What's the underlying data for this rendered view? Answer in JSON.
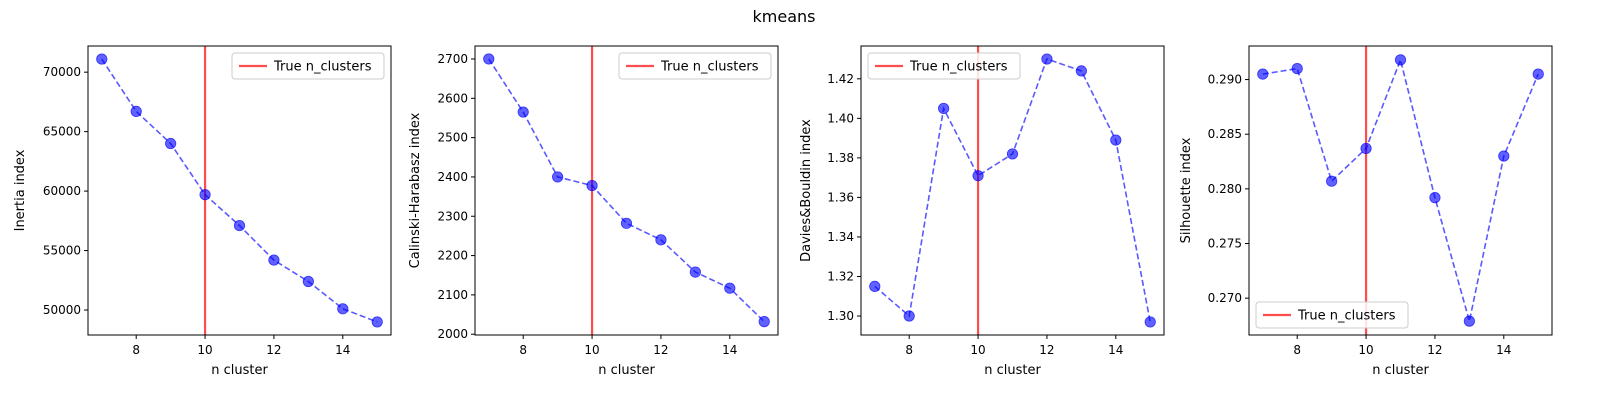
{
  "figure": {
    "title": "kmeans"
  },
  "colors": {
    "series": "#0000ff",
    "true_line": "#ff0000"
  },
  "chart_data": [
    {
      "type": "line",
      "xlabel": "n cluster",
      "ylabel": "Inertia index",
      "x": [
        7,
        8,
        9,
        10,
        11,
        12,
        13,
        14,
        15
      ],
      "values": [
        71100,
        66700,
        64000,
        59700,
        57100,
        54200,
        52400,
        50100,
        49000
      ],
      "xlim": [
        6.6,
        15.4
      ],
      "ylim": [
        47900,
        72200
      ],
      "xticks": [
        8,
        10,
        12,
        14
      ],
      "yticks": [
        50000,
        55000,
        60000,
        65000,
        70000
      ],
      "true_n_clusters": 10,
      "legend": {
        "label": "True n_clusters",
        "loc": "upper right"
      },
      "grid": false
    },
    {
      "type": "line",
      "xlabel": "n cluster",
      "ylabel": "Calinski-Harabasz index",
      "x": [
        7,
        8,
        9,
        10,
        11,
        12,
        13,
        14,
        15
      ],
      "values": [
        2700,
        2565,
        2400,
        2378,
        2282,
        2240,
        2158,
        2117,
        2032
      ],
      "xlim": [
        6.6,
        15.4
      ],
      "ylim": [
        1998,
        2733
      ],
      "xticks": [
        8,
        10,
        12,
        14
      ],
      "yticks": [
        2000,
        2100,
        2200,
        2300,
        2400,
        2500,
        2600,
        2700
      ],
      "true_n_clusters": 10,
      "legend": {
        "label": "True n_clusters",
        "loc": "upper right"
      },
      "grid": false
    },
    {
      "type": "line",
      "xlabel": "n cluster",
      "ylabel": "Davies&Bouldin index",
      "x": [
        7,
        8,
        9,
        10,
        11,
        12,
        13,
        14,
        15
      ],
      "values": [
        1.315,
        1.3,
        1.405,
        1.371,
        1.382,
        1.43,
        1.424,
        1.389,
        1.297
      ],
      "xlim": [
        6.6,
        15.4
      ],
      "ylim": [
        1.2904,
        1.4366
      ],
      "xticks": [
        8,
        10,
        12,
        14
      ],
      "yticks": [
        1.3,
        1.32,
        1.34,
        1.36,
        1.38,
        1.4,
        1.42
      ],
      "ytick_decimals": 2,
      "true_n_clusters": 10,
      "legend": {
        "label": "True n_clusters",
        "loc": "upper left"
      },
      "grid": false
    },
    {
      "type": "line",
      "xlabel": "n cluster",
      "ylabel": "Silhouette index",
      "x": [
        7,
        8,
        9,
        10,
        11,
        12,
        13,
        14,
        15
      ],
      "values": [
        0.2905,
        0.291,
        0.2807,
        0.2837,
        0.2918,
        0.2792,
        0.2679,
        0.283,
        0.2905
      ],
      "xlim": [
        6.6,
        15.4
      ],
      "ylim": [
        0.26663,
        0.29307
      ],
      "xticks": [
        8,
        10,
        12,
        14
      ],
      "yticks": [
        0.27,
        0.275,
        0.28,
        0.285,
        0.29
      ],
      "ytick_decimals": 3,
      "true_n_clusters": 10,
      "legend": {
        "label": "True n_clusters",
        "loc": "lower left"
      },
      "grid": false
    }
  ]
}
